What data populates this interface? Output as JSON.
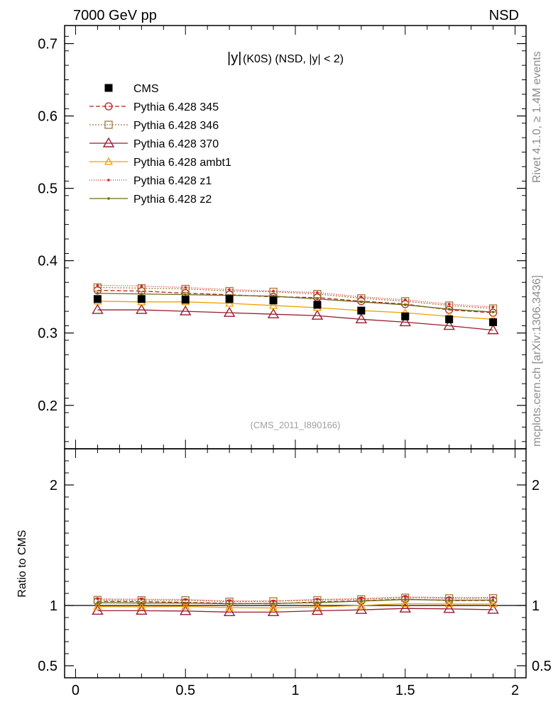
{
  "header": {
    "left": "7000 GeV pp",
    "right": "NSD"
  },
  "side_labels": {
    "rivet": "Rivet 4.1.0, ≥ 1.4M events",
    "mcplots": "mcplots.cern.ch [arXiv:1306.3436]"
  },
  "chart_data": {
    "type": "scatter",
    "title_prefix": "|y|",
    "title": "(K0S) (NSD, |y| < 2)",
    "watermark": "(CMS_2011_I890166)",
    "xlim": [
      -0.05,
      2.05
    ],
    "main": {
      "ylim": [
        0.14,
        0.725
      ],
      "ticks": [
        0.2,
        0.3,
        0.4,
        0.5,
        0.6,
        0.7
      ],
      "tick_labels": [
        "0.2",
        "0.3",
        "0.4",
        "0.5",
        "0.6",
        "0.7"
      ]
    },
    "ratio": {
      "ylabel": "Ratio to CMS",
      "ylim": [
        0.4,
        2.3
      ],
      "ticks": [
        0.5,
        1,
        2
      ],
      "tick_labels": [
        "0.5",
        "1",
        "2"
      ]
    },
    "x": [
      0.1,
      0.3,
      0.5,
      0.7,
      0.9,
      1.1,
      1.3,
      1.5,
      1.7,
      1.9
    ],
    "x_ticks": [
      0,
      0.5,
      1,
      1.5,
      2
    ],
    "x_tick_labels": [
      "0",
      "0.5",
      "1",
      "1.5",
      "2"
    ],
    "series": [
      {
        "name": "CMS",
        "role": "data",
        "color": "#000000",
        "marker": "square-filled",
        "values": [
          0.347,
          0.347,
          0.346,
          0.347,
          0.345,
          0.339,
          0.331,
          0.323,
          0.319,
          0.315
        ]
      },
      {
        "name": "Pythia 6.428 345",
        "color": "#b22222",
        "marker": "circle-open",
        "dash": "6,3",
        "values": [
          0.359,
          0.358,
          0.355,
          0.353,
          0.35,
          0.349,
          0.344,
          0.34,
          0.332,
          0.328
        ]
      },
      {
        "name": "Pythia 6.428 346",
        "color": "#a0783c",
        "marker": "square-open",
        "dash": "2,2",
        "values": [
          0.363,
          0.362,
          0.361,
          0.358,
          0.357,
          0.354,
          0.348,
          0.344,
          0.338,
          0.334
        ]
      },
      {
        "name": "Pythia 6.428 370",
        "color": "#9b1b30",
        "marker": "triangle-open",
        "dash": "",
        "values": [
          0.332,
          0.332,
          0.33,
          0.328,
          0.326,
          0.324,
          0.319,
          0.315,
          0.31,
          0.304
        ]
      },
      {
        "name": "Pythia 6.428 ambt1",
        "color": "#f0a000",
        "marker": "triangle-open-small",
        "dash": "",
        "values": [
          0.344,
          0.343,
          0.343,
          0.341,
          0.338,
          0.335,
          0.331,
          0.328,
          0.323,
          0.319
        ]
      },
      {
        "name": "Pythia 6.428 z1",
        "color": "#d42020",
        "marker": "dot",
        "dash": "1,2",
        "values": [
          0.366,
          0.365,
          0.363,
          0.36,
          0.358,
          0.356,
          0.35,
          0.346,
          0.34,
          0.336
        ]
      },
      {
        "name": "Pythia 6.428 z2",
        "color": "#6b6b10",
        "marker": "dot",
        "dash": "",
        "values": [
          0.355,
          0.354,
          0.353,
          0.352,
          0.351,
          0.347,
          0.343,
          0.339,
          0.333,
          0.329
        ]
      }
    ]
  }
}
